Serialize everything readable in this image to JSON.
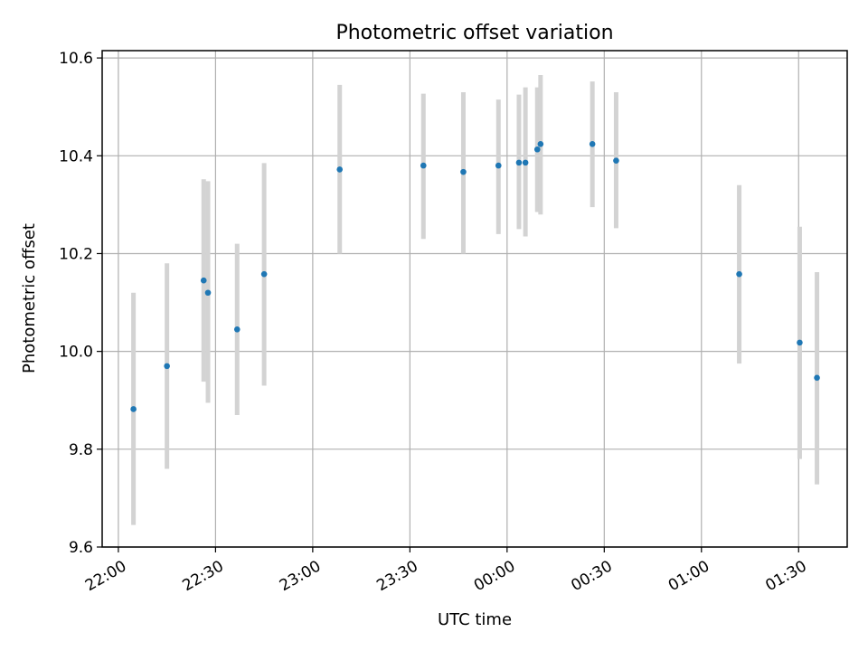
{
  "chart_data": {
    "type": "scatter",
    "title": "Photometric offset variation",
    "xlabel": "UTC time",
    "ylabel": "Photometric offset",
    "xlim": [
      "21:55",
      "01:45"
    ],
    "ylim": [
      9.6,
      10.615
    ],
    "x_ticks": [
      "22:00",
      "22:30",
      "23:00",
      "23:30",
      "00:00",
      "00:30",
      "01:00",
      "01:30"
    ],
    "y_ticks": [
      "9.6",
      "9.8",
      "10.0",
      "10.2",
      "10.4",
      "10.6"
    ],
    "grid": true,
    "marker_color": "#1f77b4",
    "errorbar_color": "#d3d3d3",
    "points": [
      {
        "time": "22:04:40",
        "value": 9.882,
        "low": 9.645,
        "high": 10.12
      },
      {
        "time": "22:15:00",
        "value": 9.97,
        "low": 9.76,
        "high": 10.18
      },
      {
        "time": "22:26:20",
        "value": 10.145,
        "low": 9.938,
        "high": 10.352
      },
      {
        "time": "22:27:40",
        "value": 10.12,
        "low": 9.895,
        "high": 10.348
      },
      {
        "time": "22:36:40",
        "value": 10.045,
        "low": 9.87,
        "high": 10.22
      },
      {
        "time": "22:45:00",
        "value": 10.158,
        "low": 9.93,
        "high": 10.385
      },
      {
        "time": "23:08:20",
        "value": 10.372,
        "low": 10.2,
        "high": 10.545
      },
      {
        "time": "23:34:10",
        "value": 10.38,
        "low": 10.23,
        "high": 10.527
      },
      {
        "time": "23:46:30",
        "value": 10.367,
        "low": 10.2,
        "high": 10.53
      },
      {
        "time": "23:57:20",
        "value": 10.38,
        "low": 10.24,
        "high": 10.515
      },
      {
        "time": "00:03:40",
        "value": 10.386,
        "low": 10.25,
        "high": 10.525
      },
      {
        "time": "00:05:40",
        "value": 10.386,
        "low": 10.235,
        "high": 10.54
      },
      {
        "time": "00:09:20",
        "value": 10.413,
        "low": 10.285,
        "high": 10.54
      },
      {
        "time": "00:10:20",
        "value": 10.424,
        "low": 10.28,
        "high": 10.565
      },
      {
        "time": "00:26:20",
        "value": 10.424,
        "low": 10.295,
        "high": 10.552
      },
      {
        "time": "00:33:40",
        "value": 10.39,
        "low": 10.252,
        "high": 10.53
      },
      {
        "time": "01:11:40",
        "value": 10.158,
        "low": 9.975,
        "high": 10.34
      },
      {
        "time": "01:30:20",
        "value": 10.018,
        "low": 9.78,
        "high": 10.255
      },
      {
        "time": "01:35:40",
        "value": 9.946,
        "low": 9.728,
        "high": 10.162
      }
    ]
  }
}
